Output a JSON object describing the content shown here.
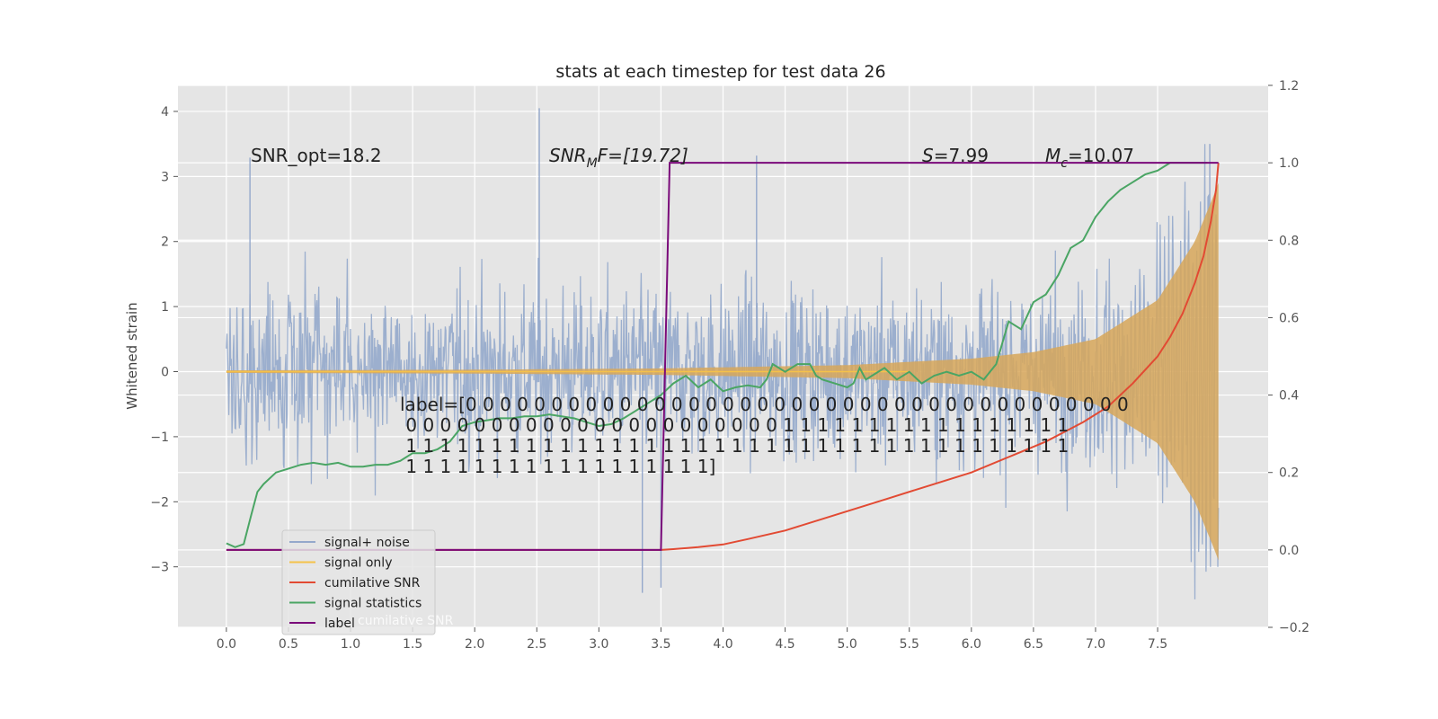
{
  "chart_data": {
    "type": "line",
    "title": "stats at each timestep for test data 26",
    "ylabel": "Whitened strain",
    "xlim": [
      -0.39,
      8.39
    ],
    "ylim": [
      -3.93,
      4.4
    ],
    "y2lim": [
      -0.2,
      1.2
    ],
    "grid": true,
    "legend_position": "lower-left",
    "x_ticks": [
      "0.0",
      "0.5",
      "1.0",
      "1.5",
      "2.0",
      "2.5",
      "3.0",
      "3.5",
      "4.0",
      "4.5",
      "5.0",
      "5.5",
      "6.0",
      "6.5",
      "7.0",
      "7.5"
    ],
    "y_ticks": [
      "4",
      "3",
      "2",
      "1",
      "0",
      "−1",
      "−2",
      "−3"
    ],
    "y2_ticks": [
      "1.2",
      "1.0",
      "0.8",
      "0.6",
      "0.4",
      "0.2",
      "0.0",
      "−0.2"
    ],
    "colors": {
      "background": "#e5e5e5",
      "signal_noise": "#94a8cb",
      "signal_only": "#f5c24a",
      "signal_fill": "#d7a75a",
      "cumulative_snr": "#e24a33",
      "signal_statistics": "#4aa564",
      "label": "#7a0a7a"
    },
    "series": [
      {
        "name": "signal+ noise",
        "description_kind": "noisy oscillation",
        "x_range": [
          0,
          7.99
        ],
        "amplitude_std": 0.95,
        "peak_values": [
          4.05,
          3.5,
          3.32,
          3.29,
          -3.5,
          -3.4
        ]
      },
      {
        "name": "signal only",
        "description_kind": "chirp",
        "x_range": [
          0,
          7.99
        ],
        "envelope": [
          [
            0,
            0.02
          ],
          [
            2,
            0.03
          ],
          [
            3.5,
            0.05
          ],
          [
            5,
            0.1
          ],
          [
            6,
            0.2
          ],
          [
            6.5,
            0.3
          ],
          [
            7,
            0.5
          ],
          [
            7.5,
            1.1
          ],
          [
            7.8,
            2.0
          ],
          [
            7.95,
            2.7
          ],
          [
            7.99,
            2.9
          ]
        ]
      },
      {
        "name": "cumilative SNR",
        "axis": "right",
        "x": [
          0,
          3.5,
          3.6,
          3.8,
          4.0,
          4.2,
          4.5,
          4.8,
          5.0,
          5.3,
          5.6,
          6.0,
          6.3,
          6.6,
          6.9,
          7.1,
          7.3,
          7.5,
          7.6,
          7.7,
          7.8,
          7.87,
          7.93,
          7.97,
          7.99
        ],
        "y": [
          0.0,
          0.0,
          0.002,
          0.007,
          0.014,
          0.028,
          0.05,
          0.08,
          0.1,
          0.13,
          0.16,
          0.2,
          0.24,
          0.28,
          0.33,
          0.37,
          0.43,
          0.5,
          0.55,
          0.61,
          0.69,
          0.76,
          0.85,
          0.93,
          1.0
        ]
      },
      {
        "name": "signal statistics",
        "axis": "right",
        "x": [
          0,
          0.07,
          0.14,
          0.2,
          0.25,
          0.3,
          0.4,
          0.5,
          0.6,
          0.7,
          0.8,
          0.9,
          1.0,
          1.1,
          1.2,
          1.3,
          1.4,
          1.5,
          1.6,
          1.7,
          1.8,
          1.9,
          2.0,
          2.1,
          2.2,
          2.3,
          2.4,
          2.5,
          2.6,
          2.7,
          2.8,
          2.9,
          3.0,
          3.1,
          3.2,
          3.3,
          3.4,
          3.5,
          3.6,
          3.7,
          3.8,
          3.9,
          4.0,
          4.1,
          4.2,
          4.3,
          4.35,
          4.4,
          4.5,
          4.6,
          4.7,
          4.75,
          4.8,
          4.9,
          5.0,
          5.05,
          5.1,
          5.15,
          5.2,
          5.3,
          5.4,
          5.5,
          5.6,
          5.65,
          5.7,
          5.8,
          5.9,
          6.0,
          6.1,
          6.2,
          6.3,
          6.4,
          6.5,
          6.6,
          6.7,
          6.8,
          6.9,
          7.0,
          7.1,
          7.2,
          7.3,
          7.4,
          7.5,
          7.6,
          7.7,
          7.8,
          7.9
        ],
        "y": [
          0.017,
          0.007,
          0.015,
          0.09,
          0.15,
          0.17,
          0.2,
          0.21,
          0.22,
          0.225,
          0.22,
          0.225,
          0.215,
          0.215,
          0.22,
          0.22,
          0.23,
          0.25,
          0.25,
          0.26,
          0.28,
          0.32,
          0.33,
          0.335,
          0.34,
          0.34,
          0.345,
          0.345,
          0.35,
          0.345,
          0.34,
          0.33,
          0.32,
          0.325,
          0.34,
          0.36,
          0.38,
          0.4,
          0.43,
          0.45,
          0.42,
          0.44,
          0.41,
          0.42,
          0.425,
          0.42,
          0.44,
          0.48,
          0.46,
          0.48,
          0.48,
          0.45,
          0.44,
          0.43,
          0.42,
          0.43,
          0.47,
          0.44,
          0.45,
          0.47,
          0.44,
          0.46,
          0.43,
          0.44,
          0.45,
          0.46,
          0.45,
          0.46,
          0.44,
          0.48,
          0.59,
          0.57,
          0.64,
          0.66,
          0.71,
          0.78,
          0.8,
          0.86,
          0.9,
          0.93,
          0.95,
          0.97,
          0.98,
          1.0,
          1.0,
          1.0,
          1.0
        ]
      },
      {
        "name": "label",
        "axis": "right",
        "x": [
          0,
          3.5,
          3.57,
          7.99
        ],
        "y": [
          0.0,
          0.0,
          1.0,
          1.0
        ]
      }
    ],
    "legend": [
      "signal+ noise",
      "signal only",
      "cumilative SNR",
      "signal statistics",
      "label"
    ],
    "legend_ghost_text": "cumilative SNR",
    "annotations": {
      "snr_opt": "SNR_opt=18.2",
      "snr_mf_pre": "SNR",
      "snr_mf_sub": "M",
      "snr_mf_post": "F=[19.72]",
      "s_italic": "S",
      "s_value": "=7.99",
      "m_italic": "M",
      "m_sub": "c",
      "m_value": "=10.07",
      "label_lines": [
        "label=[0 0 0 0 0 0 0 0 0 0 0 0 0 0 0 0 0 0 0 0 0 0 0 0 0 0 0 0 0 0 0 0 0 0 0 0 0 0 0",
        " 0 0 0 0 0 0 0 0 0 0 0 0 0 0 0 0 0 0 0 0 0 0 1 1 1 1 1 1 1 1 1 1 1 1 1 1 1 1 1",
        " 1 1 1 1 1 1 1 1 1 1 1 1 1 1 1 1 1 1 1 1 1 1 1 1 1 1 1 1 1 1 1 1 1 1 1 1 1 1 1",
        " 1 1 1 1 1 1 1 1 1 1 1 1 1 1 1 1 1 1]"
      ]
    }
  }
}
